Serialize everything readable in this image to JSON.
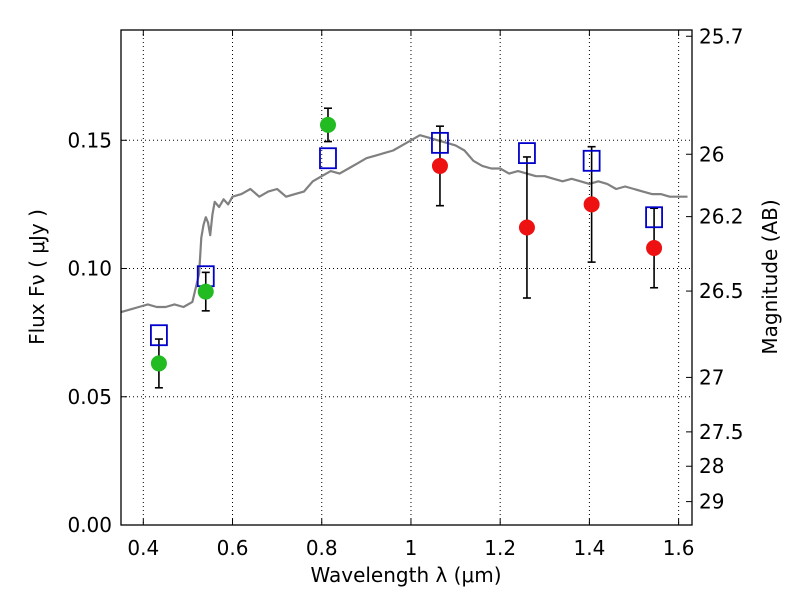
{
  "chart_data": {
    "type": "scatter",
    "title": "",
    "xlabel": "Wavelength  λ (μm)",
    "ylabel": "Flux  Fν  ( μJy )",
    "ylabel_right": "Magnitude (AB)",
    "xlim": [
      0.35,
      1.63
    ],
    "ylim": [
      0.0,
      0.193
    ],
    "grid": true,
    "x_ticks": [
      {
        "value": 0.4,
        "label": "0.4"
      },
      {
        "value": 0.6,
        "label": "0.6"
      },
      {
        "value": 0.8,
        "label": "0.8"
      },
      {
        "value": 1.0,
        "label": "1"
      },
      {
        "value": 1.2,
        "label": "1.2"
      },
      {
        "value": 1.4,
        "label": "1.4"
      },
      {
        "value": 1.6,
        "label": "1.6"
      }
    ],
    "y_ticks": [
      {
        "value": 0.0,
        "label": "0.00"
      },
      {
        "value": 0.05,
        "label": "0.05"
      },
      {
        "value": 0.1,
        "label": "0.10"
      },
      {
        "value": 0.15,
        "label": "0.15"
      }
    ],
    "right_ticks": [
      {
        "value": 25.7,
        "label": "25.7"
      },
      {
        "value": 26.0,
        "label": "26"
      },
      {
        "value": 26.2,
        "label": "26.2"
      },
      {
        "value": 26.5,
        "label": "26.5"
      },
      {
        "value": 27.0,
        "label": "27"
      },
      {
        "value": 27.5,
        "label": "27.5"
      },
      {
        "value": 28.0,
        "label": "28"
      },
      {
        "value": 29.0,
        "label": "29"
      }
    ],
    "magnitude_zero_point_ujy": 3631000000,
    "series": [
      {
        "marker": "square",
        "color": "#0000cc",
        "x": [
          0.435,
          0.54,
          0.814,
          1.065,
          1.26,
          1.405,
          1.545
        ],
        "y": [
          0.074,
          0.097,
          0.143,
          0.149,
          0.145,
          0.142,
          0.12
        ]
      },
      {
        "marker": "circle",
        "color": "#22bb22",
        "x": [
          0.435,
          0.54,
          0.814
        ],
        "y": [
          0.063,
          0.091,
          0.156
        ],
        "yerr": [
          0.0095,
          0.0075,
          0.0065
        ]
      },
      {
        "marker": "circle",
        "color": "#ee1111",
        "x": [
          1.065,
          1.26,
          1.405,
          1.545
        ],
        "y": [
          0.14,
          0.116,
          0.125,
          0.108
        ],
        "yerr": [
          0.0155,
          0.0275,
          0.0225,
          0.0155
        ]
      },
      {
        "marker": "line",
        "color": "#808080",
        "x": [
          0.35,
          0.37,
          0.39,
          0.41,
          0.43,
          0.45,
          0.47,
          0.49,
          0.51,
          0.525,
          0.53,
          0.535,
          0.54,
          0.545,
          0.55,
          0.555,
          0.56,
          0.57,
          0.58,
          0.59,
          0.6,
          0.62,
          0.64,
          0.66,
          0.68,
          0.7,
          0.72,
          0.74,
          0.76,
          0.78,
          0.8,
          0.82,
          0.84,
          0.86,
          0.88,
          0.9,
          0.92,
          0.94,
          0.96,
          0.98,
          1.0,
          1.02,
          1.04,
          1.06,
          1.08,
          1.1,
          1.12,
          1.14,
          1.16,
          1.18,
          1.2,
          1.22,
          1.24,
          1.26,
          1.28,
          1.3,
          1.32,
          1.34,
          1.36,
          1.38,
          1.4,
          1.42,
          1.44,
          1.46,
          1.48,
          1.5,
          1.52,
          1.54,
          1.56,
          1.58,
          1.6,
          1.62
        ],
        "y": [
          0.083,
          0.084,
          0.085,
          0.086,
          0.085,
          0.085,
          0.086,
          0.085,
          0.087,
          0.098,
          0.112,
          0.117,
          0.12,
          0.118,
          0.113,
          0.121,
          0.126,
          0.124,
          0.127,
          0.125,
          0.128,
          0.129,
          0.131,
          0.128,
          0.13,
          0.131,
          0.128,
          0.129,
          0.13,
          0.134,
          0.136,
          0.138,
          0.137,
          0.139,
          0.141,
          0.143,
          0.144,
          0.145,
          0.146,
          0.148,
          0.15,
          0.152,
          0.151,
          0.15,
          0.149,
          0.148,
          0.146,
          0.142,
          0.14,
          0.139,
          0.139,
          0.137,
          0.138,
          0.137,
          0.136,
          0.136,
          0.135,
          0.134,
          0.135,
          0.134,
          0.133,
          0.134,
          0.133,
          0.131,
          0.132,
          0.131,
          0.13,
          0.129,
          0.129,
          0.128,
          0.128,
          0.128
        ]
      }
    ]
  }
}
